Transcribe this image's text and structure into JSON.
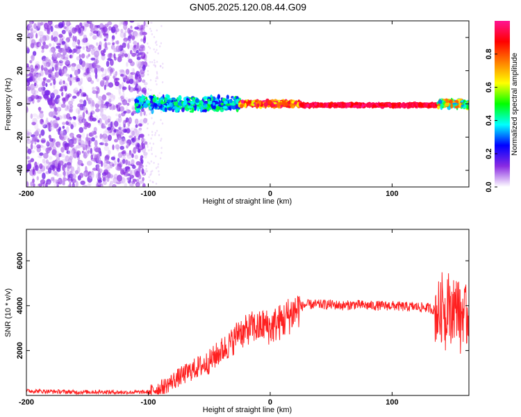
{
  "title": "GN05.2025.120.08.44.G09",
  "chart_data": [
    {
      "type": "heatmap",
      "panel": "spectrogram",
      "xlabel": "Height of straight line (km)",
      "ylabel": "Frequency (Hz)",
      "xlim": [
        -200,
        163
      ],
      "ylim": [
        -50,
        50
      ],
      "x_ticks": [
        -200,
        -100,
        0,
        100
      ],
      "y_ticks": [
        -40,
        -20,
        0,
        20,
        40
      ],
      "colorbar": {
        "label": "Normalized spectral amplitude",
        "range": [
          0,
          1
        ],
        "ticks": [
          0.0,
          0.2,
          0.4,
          0.6,
          0.8
        ],
        "tick_labels": [
          "0.0",
          "0.2",
          "0.4",
          "0.6",
          "0.8"
        ],
        "colors": [
          "#ffffff",
          "#8a2be2",
          "#0000ff",
          "#00ffff",
          "#00ff00",
          "#ffff00",
          "#ff8000",
          "#ff0000",
          "#ff1493"
        ]
      },
      "regions": [
        {
          "x": [
            -200,
            -102
          ],
          "freq_hz": [
            -50,
            50
          ],
          "amplitude": [
            0.02,
            0.15
          ],
          "description": "broadband noise"
        },
        {
          "x": [
            -110,
            -25
          ],
          "freq_hz": [
            -5,
            5
          ],
          "amplitude": [
            0.2,
            0.5
          ],
          "description": "signal emerging"
        },
        {
          "x": [
            -25,
            25
          ],
          "freq_hz": [
            -2,
            2
          ],
          "amplitude": [
            0.6,
            1.0
          ]
        },
        {
          "x": [
            25,
            138
          ],
          "freq_hz": [
            -1.5,
            0
          ],
          "amplitude": [
            0.85,
            1.0
          ]
        },
        {
          "x": [
            138,
            163
          ],
          "freq_hz": [
            -3,
            3
          ],
          "amplitude": [
            0.3,
            0.8
          ]
        }
      ]
    },
    {
      "type": "line",
      "panel": "snr",
      "xlabel": "Height of straight line (km)",
      "ylabel": "SNR (10 * v/v)",
      "xlim": [
        -200,
        163
      ],
      "ylim": [
        0,
        7400
      ],
      "x_ticks": [
        -200,
        -100,
        0,
        100
      ],
      "y_ticks": [
        2000,
        4000,
        6000
      ],
      "line_color": "#ff2020",
      "series": [
        {
          "x": [
            -200,
            -180,
            -160,
            -140,
            -120,
            -100,
            -95,
            -90,
            -85,
            -80,
            -75,
            -70,
            -65,
            -60,
            -55,
            -50,
            -45,
            -40,
            -35,
            -30,
            -27,
            -25,
            -22,
            -20,
            -15,
            -10,
            -5,
            0,
            5,
            10,
            15,
            20,
            25,
            30,
            40,
            50,
            60,
            70,
            80,
            90,
            100,
            110,
            120,
            130,
            135,
            140,
            142,
            144,
            146,
            148,
            150,
            152,
            154,
            156,
            158,
            160,
            163
          ],
          "values": [
            200,
            180,
            150,
            160,
            140,
            150,
            250,
            350,
            450,
            650,
            800,
            950,
            1100,
            1250,
            1350,
            1500,
            1750,
            2000,
            2200,
            2450,
            2750,
            3000,
            2700,
            2900,
            3050,
            3000,
            3150,
            3000,
            3200,
            3300,
            3550,
            3750,
            3950,
            4050,
            4050,
            4050,
            4000,
            4050,
            4000,
            4000,
            4000,
            3950,
            3950,
            3900,
            3800,
            3600,
            4500,
            3200,
            4900,
            3000,
            4300,
            3600,
            4400,
            3100,
            3900,
            3400,
            3700
          ]
        }
      ]
    }
  ]
}
